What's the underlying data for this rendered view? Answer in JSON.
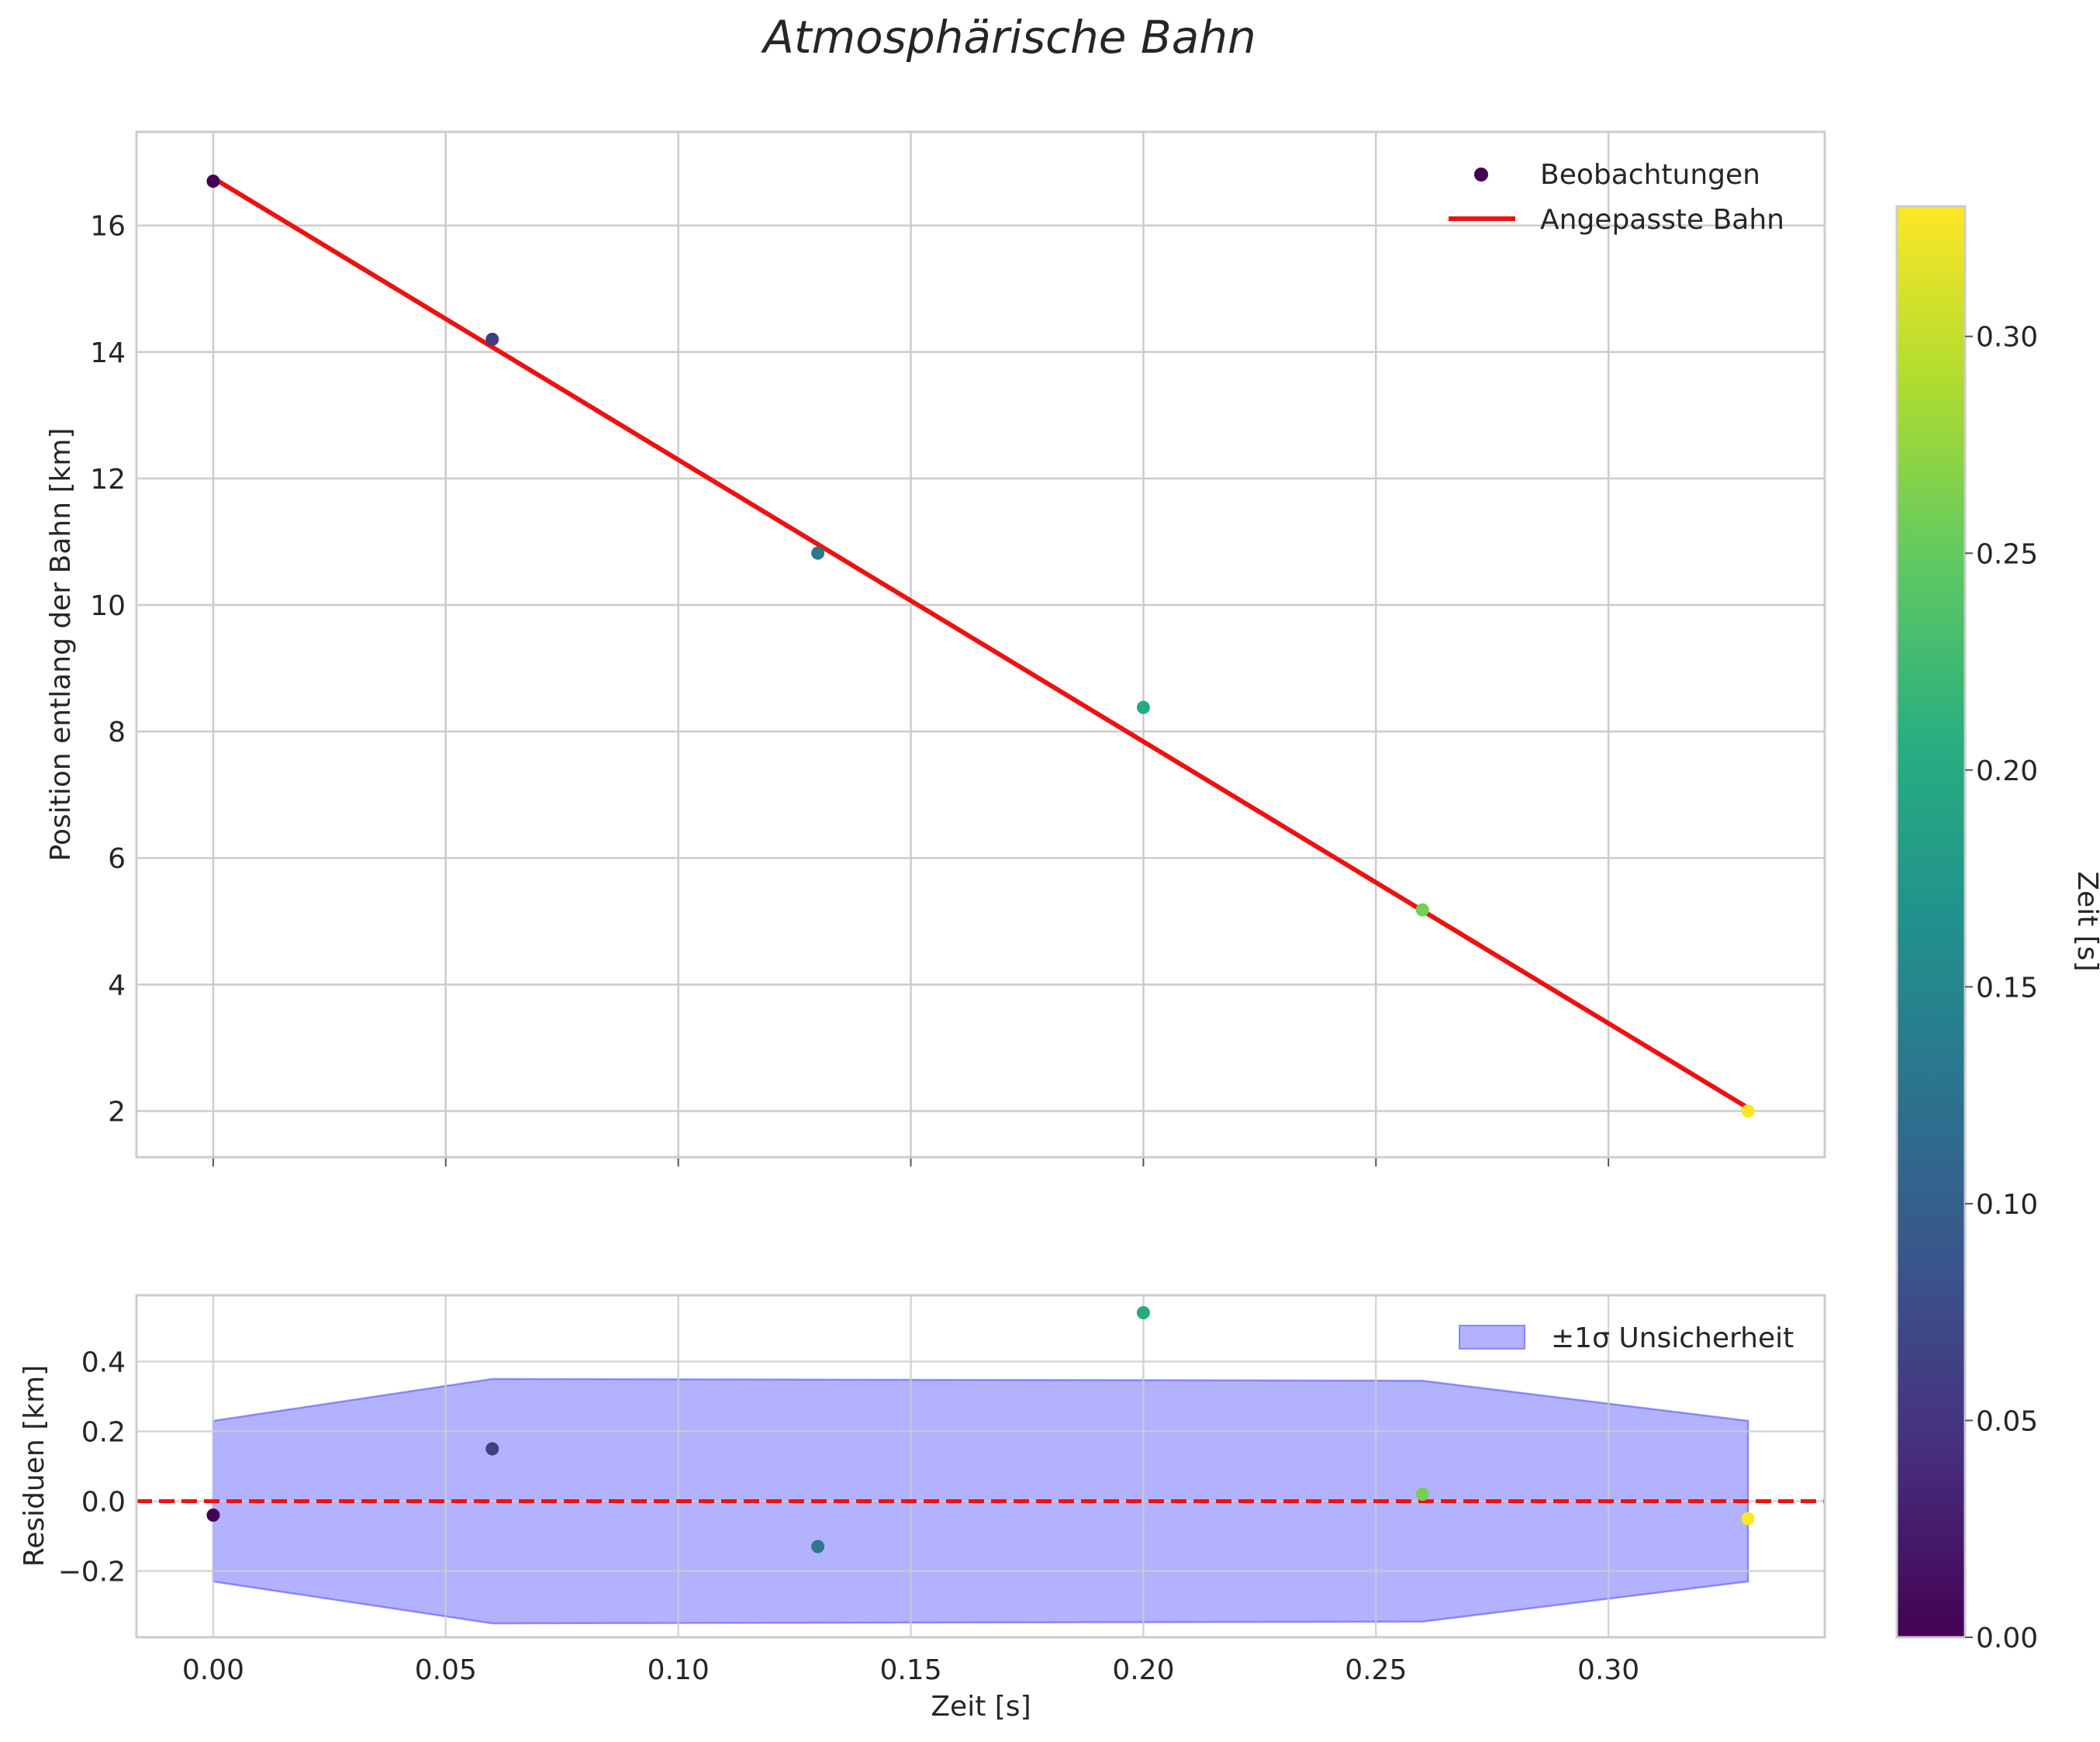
{
  "chart_data": {
    "type": "scatter",
    "title": "Atmosphärische Bahn",
    "top_panel": {
      "ylabel": "Position entlang der Bahn [km]",
      "xlim": [
        -0.0165,
        0.3465
      ],
      "ylim": [
        1.27,
        17.48
      ],
      "y_ticks": [
        2,
        4,
        6,
        8,
        10,
        12,
        14,
        16
      ],
      "observations": {
        "name": "Beobachtungen",
        "t": [
          0.0,
          0.06,
          0.13,
          0.2,
          0.26,
          0.33
        ],
        "position": [
          16.7,
          14.2,
          10.82,
          8.38,
          5.18,
          2.0
        ]
      },
      "fit": {
        "name": "Angepasste Bahn",
        "t": [
          0.0,
          0.33
        ],
        "position": [
          16.75,
          2.05
        ],
        "color": "#ee1111"
      },
      "legend": [
        "Beobachtungen",
        "Angepasste Bahn"
      ],
      "legend_position": "top-right"
    },
    "bottom_panel": {
      "ylabel": "Residuen [km]",
      "xlabel": "Zeit [s]",
      "xlim": [
        -0.0165,
        0.3465
      ],
      "ylim": [
        -0.39,
        0.59
      ],
      "y_ticks": [
        -0.2,
        0.0,
        0.2,
        0.4
      ],
      "y_tick_labels": [
        "−0.2",
        "0.0",
        "0.2",
        "0.4"
      ],
      "x_ticks": [
        0.0,
        0.05,
        0.1,
        0.15,
        0.2,
        0.25,
        0.3
      ],
      "x_tick_labels": [
        "0.00",
        "0.05",
        "0.10",
        "0.15",
        "0.20",
        "0.25",
        "0.30"
      ],
      "residuals": {
        "t": [
          0.0,
          0.06,
          0.13,
          0.2,
          0.26,
          0.33
        ],
        "value": [
          -0.04,
          0.15,
          -0.13,
          0.54,
          0.02,
          -0.05
        ]
      },
      "uncertainty_band": {
        "name": "±1σ Unsicherheit",
        "t": [
          0.0,
          0.06,
          0.26,
          0.33
        ],
        "sigma": [
          0.23,
          0.35,
          0.345,
          0.23
        ],
        "color": "#6666ff"
      },
      "zero_line": {
        "value": 0.0,
        "color": "#ee1111",
        "style": "dashed"
      },
      "legend": [
        "±1σ Unsicherheit"
      ],
      "legend_position": "top-right"
    },
    "colorbar": {
      "label": "Zeit [s]",
      "colormap": "viridis",
      "range": [
        0.0,
        0.33
      ],
      "ticks": [
        0.0,
        0.05,
        0.1,
        0.15,
        0.2,
        0.25,
        0.3
      ],
      "tick_labels": [
        "0.00",
        "0.05",
        "0.10",
        "0.15",
        "0.20",
        "0.25",
        "0.30"
      ]
    }
  }
}
